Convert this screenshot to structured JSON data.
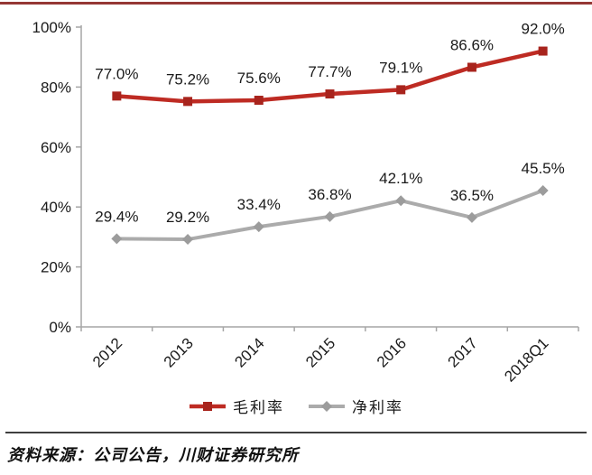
{
  "page": {
    "top_border_color": "#953735"
  },
  "chart_data": {
    "type": "line",
    "title": "",
    "xlabel": "",
    "ylabel": "",
    "categories": [
      "2012",
      "2013",
      "2014",
      "2015",
      "2016",
      "2017",
      "2018Q1"
    ],
    "series": [
      {
        "name": "毛利率",
        "values": [
          77.0,
          75.2,
          75.6,
          77.7,
          79.1,
          86.6,
          92.0
        ],
        "data_labels": [
          "77.0%",
          "75.2%",
          "75.6%",
          "77.7%",
          "79.1%",
          "86.6%",
          "92.0%"
        ],
        "color": "#be2b23",
        "marker_color": "#a8241d",
        "marker": "square"
      },
      {
        "name": "净利率",
        "values": [
          29.4,
          29.2,
          33.4,
          36.8,
          42.1,
          36.5,
          45.5
        ],
        "data_labels": [
          "29.4%",
          "29.2%",
          "33.4%",
          "36.8%",
          "42.1%",
          "36.5%",
          "45.5%"
        ],
        "color": "#ababab",
        "marker_color": "#9c9c9c",
        "marker": "diamond"
      }
    ],
    "ylim": [
      0,
      100
    ],
    "ytick_step": 20,
    "ytick_labels": [
      "0%",
      "20%",
      "40%",
      "60%",
      "80%",
      "100%"
    ],
    "grid": false,
    "legend_position": "bottom",
    "axis_color": "#a6a6a6",
    "text_color": "#1a1a1a"
  },
  "footer": {
    "source_text": "资料来源：公司公告，川财证券研究所"
  }
}
